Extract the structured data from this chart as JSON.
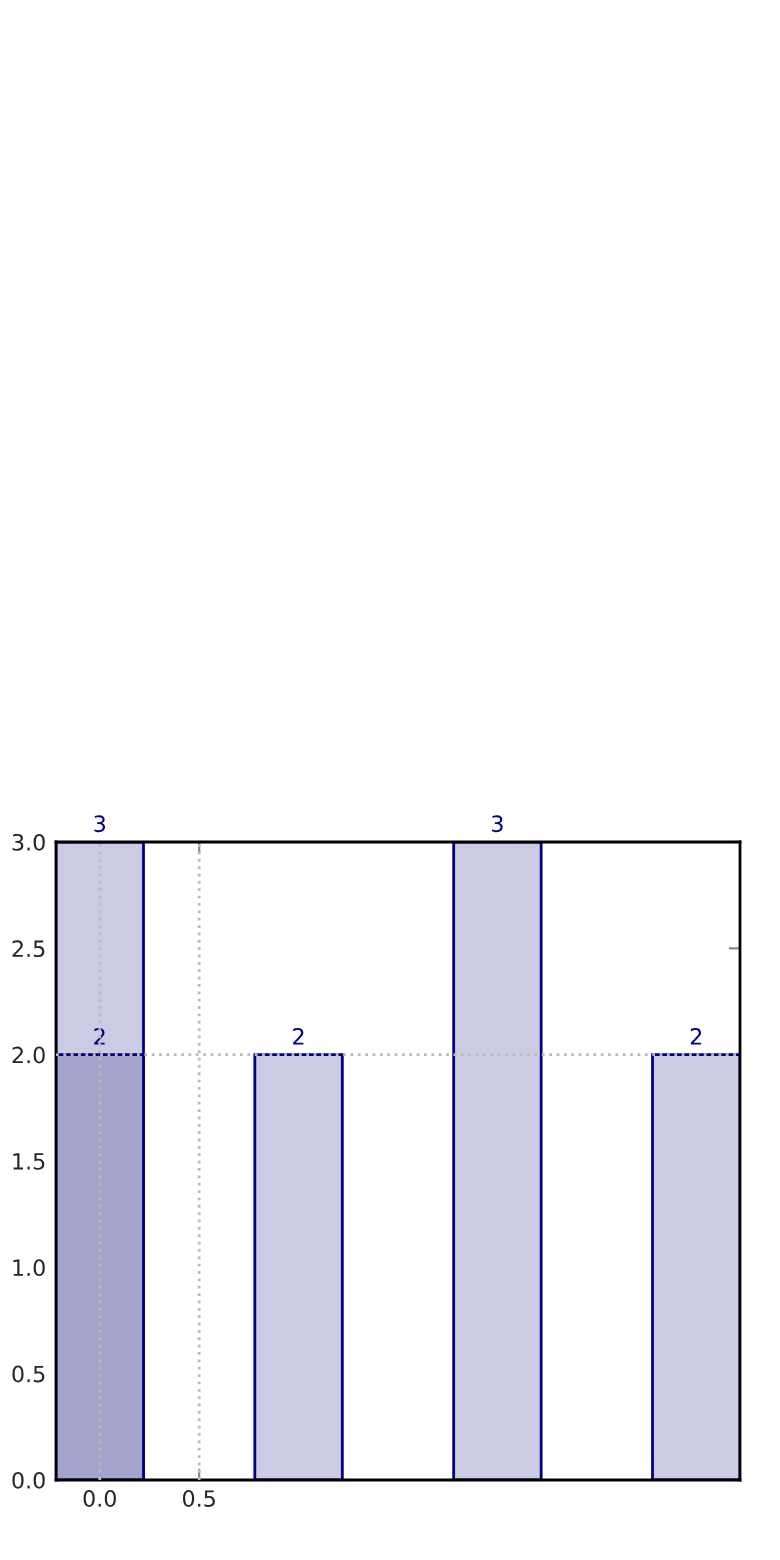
{
  "chart_data": {
    "type": "bar",
    "data_labels": true,
    "series": [
      {
        "x": [
          0,
          1,
          2,
          3
        ],
        "values": [
          3,
          2,
          3,
          2
        ],
        "color": "#cbcbe3"
      },
      {
        "x": [
          0
        ],
        "values": [
          2
        ],
        "color": "#a3a3cc"
      }
    ],
    "xlim": [
      -0.22,
      3.22
    ],
    "xticks": [
      {
        "value": 0,
        "label": "0.0"
      },
      {
        "value": 0.5,
        "label": "0.5"
      }
    ],
    "ylim": [
      0,
      3
    ],
    "yticks": [
      {
        "value": 0,
        "label": "0.0"
      },
      {
        "value": 0.5,
        "label": "0.5"
      },
      {
        "value": 1,
        "label": "1.0"
      },
      {
        "value": 1.5,
        "label": "1.5"
      },
      {
        "value": 2,
        "label": "2.0"
      },
      {
        "value": 2.5,
        "label": "2.5"
      },
      {
        "value": 3,
        "label": "3.0"
      }
    ],
    "ref_lines": [
      {
        "axis": "x",
        "value": 0,
        "color": "#bbbbbb",
        "line_style": "dotted"
      },
      {
        "axis": "x",
        "value": 0.5,
        "color": "#bbbbbb",
        "line_style": "dotted"
      },
      {
        "axis": "y",
        "value": 2,
        "color": "#bbbbbb",
        "line_style": "dotted"
      }
    ]
  }
}
